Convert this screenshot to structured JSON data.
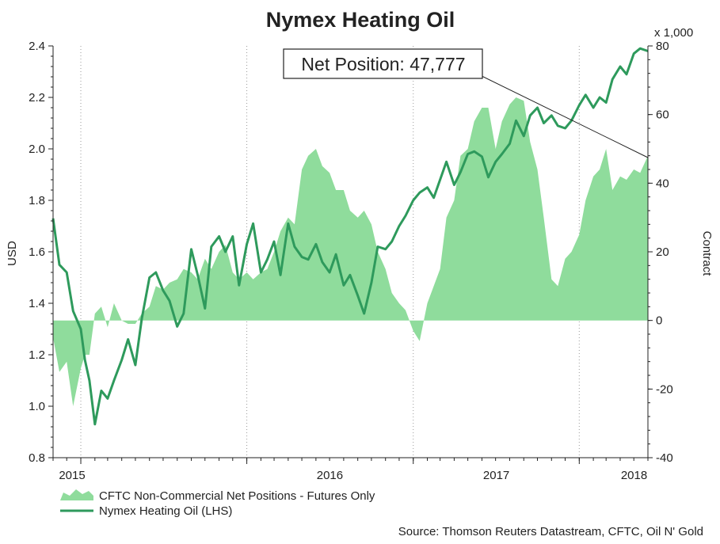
{
  "chart_data": {
    "type": "line",
    "title": "Nymex Heating Oil",
    "ylabel_left": "USD",
    "ylabel_right": "Contract",
    "right_axis_multiplier": "x 1,000",
    "ylim_left": [
      0.8,
      2.4
    ],
    "ylim_right": [
      -40,
      80
    ],
    "yticks_left": [
      "0.8",
      "1.0",
      "1.2",
      "1.4",
      "1.6",
      "1.8",
      "2.0",
      "2.2",
      "2.4"
    ],
    "yticks_right": [
      "-40",
      "-20",
      "0",
      "20",
      "40",
      "60",
      "80"
    ],
    "xlim": [
      "2014-11-01",
      "2018-06-01"
    ],
    "xticks": [
      {
        "label": "2015",
        "date": "2015-01-01"
      },
      {
        "label": "2016",
        "date": "2016-01-01"
      },
      {
        "label": "2017",
        "date": "2017-01-01"
      },
      {
        "label": "2018",
        "date": "2018-01-01"
      }
    ],
    "grid": "vertical dotted",
    "annotation": "Net Position: 47,777",
    "series": [
      {
        "name": "CFTC Non-Commercial Net Positions - Futures Only",
        "axis": "right",
        "style": "area",
        "color": "#7fd68d",
        "x": [
          "2014-11-01",
          "2014-11-15",
          "2014-12-01",
          "2014-12-15",
          "2015-01-01",
          "2015-01-10",
          "2015-01-20",
          "2015-02-01",
          "2015-02-15",
          "2015-03-01",
          "2015-03-15",
          "2015-04-01",
          "2015-04-15",
          "2015-05-01",
          "2015-05-15",
          "2015-06-01",
          "2015-06-15",
          "2015-07-01",
          "2015-07-15",
          "2015-08-01",
          "2015-08-15",
          "2015-09-01",
          "2015-09-15",
          "2015-10-01",
          "2015-10-15",
          "2015-11-01",
          "2015-11-15",
          "2015-12-01",
          "2015-12-15",
          "2016-01-01",
          "2016-01-15",
          "2016-02-01",
          "2016-02-15",
          "2016-03-01",
          "2016-03-15",
          "2016-04-01",
          "2016-04-15",
          "2016-05-01",
          "2016-05-15",
          "2016-06-01",
          "2016-06-15",
          "2016-07-01",
          "2016-07-15",
          "2016-08-01",
          "2016-08-15",
          "2016-09-01",
          "2016-09-15",
          "2016-10-01",
          "2016-10-15",
          "2016-11-01",
          "2016-11-15",
          "2016-12-01",
          "2016-12-15",
          "2017-01-01",
          "2017-01-15",
          "2017-02-01",
          "2017-02-15",
          "2017-03-01",
          "2017-03-15",
          "2017-04-01",
          "2017-04-15",
          "2017-05-01",
          "2017-05-15",
          "2017-06-01",
          "2017-06-15",
          "2017-07-01",
          "2017-07-15",
          "2017-08-01",
          "2017-08-15",
          "2017-09-01",
          "2017-09-15",
          "2017-10-01",
          "2017-10-15",
          "2017-11-01",
          "2017-11-15",
          "2017-12-01",
          "2017-12-15",
          "2018-01-01",
          "2018-01-15",
          "2018-02-01",
          "2018-02-15",
          "2018-03-01",
          "2018-03-15",
          "2018-04-01",
          "2018-04-15",
          "2018-05-01",
          "2018-05-15",
          "2018-06-01"
        ],
        "values": [
          -5,
          -15,
          -12,
          -25,
          -14,
          -10,
          -10,
          2,
          4,
          -2,
          5,
          0,
          -1,
          -1,
          2,
          4,
          10,
          9,
          11,
          12,
          15,
          14,
          12,
          18,
          15,
          20,
          22,
          14,
          12,
          14,
          12,
          14,
          15,
          20,
          26,
          30,
          28,
          44,
          48,
          50,
          45,
          43,
          38,
          38,
          32,
          30,
          32,
          28,
          20,
          15,
          8,
          5,
          3,
          -3,
          -6,
          5,
          10,
          15,
          30,
          35,
          48,
          50,
          58,
          62,
          62,
          50,
          58,
          63,
          65,
          64,
          52,
          44,
          30,
          12,
          10,
          18,
          20,
          25,
          35,
          42,
          44,
          50,
          38,
          42,
          41,
          44,
          43,
          48
        ]
      },
      {
        "name": "Nymex Heating Oil (LHS)",
        "axis": "left",
        "style": "line",
        "color": "#2e9a5c",
        "x": [
          "2014-11-01",
          "2014-11-15",
          "2014-12-01",
          "2014-12-15",
          "2015-01-01",
          "2015-01-10",
          "2015-01-20",
          "2015-02-01",
          "2015-02-15",
          "2015-03-01",
          "2015-03-15",
          "2015-04-01",
          "2015-04-15",
          "2015-05-01",
          "2015-05-15",
          "2015-06-01",
          "2015-06-15",
          "2015-07-01",
          "2015-07-15",
          "2015-08-01",
          "2015-08-15",
          "2015-09-01",
          "2015-09-15",
          "2015-10-01",
          "2015-10-15",
          "2015-11-01",
          "2015-11-15",
          "2015-12-01",
          "2015-12-15",
          "2016-01-01",
          "2016-01-15",
          "2016-02-01",
          "2016-02-15",
          "2016-03-01",
          "2016-03-15",
          "2016-04-01",
          "2016-04-15",
          "2016-05-01",
          "2016-05-15",
          "2016-06-01",
          "2016-06-15",
          "2016-07-01",
          "2016-07-15",
          "2016-08-01",
          "2016-08-15",
          "2016-09-01",
          "2016-09-15",
          "2016-10-01",
          "2016-10-15",
          "2016-11-01",
          "2016-11-15",
          "2016-12-01",
          "2016-12-15",
          "2017-01-01",
          "2017-01-15",
          "2017-02-01",
          "2017-02-15",
          "2017-03-01",
          "2017-03-15",
          "2017-04-01",
          "2017-04-15",
          "2017-05-01",
          "2017-05-15",
          "2017-06-01",
          "2017-06-15",
          "2017-07-01",
          "2017-07-15",
          "2017-08-01",
          "2017-08-15",
          "2017-09-01",
          "2017-09-15",
          "2017-10-01",
          "2017-10-15",
          "2017-11-01",
          "2017-11-15",
          "2017-12-01",
          "2017-12-15",
          "2018-01-01",
          "2018-01-15",
          "2018-02-01",
          "2018-02-15",
          "2018-03-01",
          "2018-03-15",
          "2018-04-01",
          "2018-04-15",
          "2018-05-01",
          "2018-05-15",
          "2018-06-01"
        ],
        "values": [
          1.73,
          1.55,
          1.52,
          1.37,
          1.3,
          1.18,
          1.1,
          0.93,
          1.06,
          1.03,
          1.1,
          1.18,
          1.26,
          1.16,
          1.34,
          1.5,
          1.52,
          1.45,
          1.41,
          1.31,
          1.36,
          1.61,
          1.51,
          1.38,
          1.62,
          1.66,
          1.6,
          1.66,
          1.47,
          1.63,
          1.71,
          1.52,
          1.57,
          1.64,
          1.51,
          1.71,
          1.62,
          1.58,
          1.57,
          1.63,
          1.56,
          1.52,
          1.59,
          1.47,
          1.51,
          1.43,
          1.36,
          1.48,
          1.62,
          1.61,
          1.64,
          1.7,
          1.74,
          1.8,
          1.83,
          1.85,
          1.81,
          1.88,
          1.95,
          1.86,
          1.91,
          1.98,
          1.99,
          1.97,
          1.89,
          1.95,
          1.98,
          2.02,
          2.11,
          2.05,
          2.13,
          2.16,
          2.1,
          2.13,
          2.09,
          2.08,
          2.11,
          2.17,
          2.21,
          2.16,
          2.2,
          2.18,
          2.27,
          2.32,
          2.29,
          2.37,
          2.39,
          2.38
        ]
      }
    ]
  },
  "legend": {
    "area_label": "CFTC Non-Commercial Net Positions - Futures Only",
    "line_label": "Nymex Heating Oil (LHS)"
  },
  "source": "Source: Thomson Reuters Datastream, CFTC, Oil N' Gold",
  "colors": {
    "area_fill": "#8fdc9c",
    "line": "#2e9a5c",
    "axis": "#222222",
    "grid": "#9a9a9a"
  }
}
